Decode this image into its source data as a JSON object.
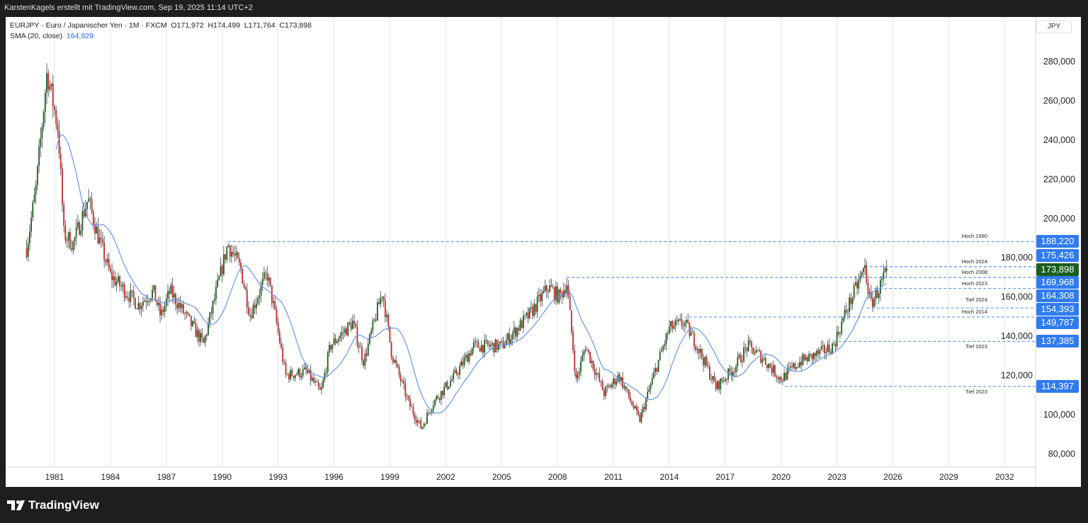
{
  "header": {
    "credit": "KarstenKagels erstellt mit TradingView.com, Sep 19, 2025 11:14 UTC+2"
  },
  "legend": {
    "symbol": "EURJPY · Euro / Japanischer Yen · 1M · FXCM",
    "open": "O171,972",
    "high": "H174,499",
    "low": "L171,764",
    "close": "C173,898",
    "sma_label": "SMA (20, close)",
    "sma_value": "164,929"
  },
  "currency": "JPY",
  "logo": "TradingView",
  "colors": {
    "up": "#1b5e20",
    "down": "#c62828",
    "sma": "#5b8def",
    "level": "#2f7bf0",
    "current": "#1b5e20"
  },
  "levels": [
    {
      "label": "Hoch 1990",
      "value": 188220,
      "text": "188,220",
      "from": 1990.3
    },
    {
      "label": "Hoch 2024",
      "value": 175426,
      "text": "175,426",
      "from": 2024.5
    },
    {
      "label": "Hoch 2008",
      "value": 169968,
      "text": "169,968",
      "from": 2008.5
    },
    {
      "label": "Hoch 2023",
      "value": 164308,
      "text": "164,308",
      "from": 2025.0
    },
    {
      "label": "Tief 2024",
      "value": 154393,
      "text": "154,393",
      "from": 2024.6
    },
    {
      "label": "Hoch 2014",
      "value": 149787,
      "text": "149,787",
      "from": 2014.8
    },
    {
      "label": "Tief 2023",
      "value": 137385,
      "text": "137,385",
      "from": 2023.1
    },
    {
      "label": "Tief 2023",
      "value": 114397,
      "text": "114,397",
      "from": 2020.2
    }
  ],
  "current_price": {
    "value": 173898,
    "text": "173,898"
  },
  "chart_data": {
    "type": "candlestick",
    "interval": "1M",
    "ylim": [
      72000,
      295000
    ],
    "xlim": [
      1979.4,
      2034.8
    ],
    "yticks": [
      80000,
      100000,
      120000,
      140000,
      160000,
      180000,
      200000,
      220000,
      240000,
      260000,
      280000
    ],
    "ytick_labels": [
      "80,000",
      "100,000",
      "120,000",
      "140,000",
      "160,000",
      "180,000",
      "200,000",
      "220,000",
      "240,000",
      "260,000",
      "280,000"
    ],
    "xticks": [
      1981,
      1984,
      1987,
      1990,
      1993,
      1996,
      1999,
      2002,
      2005,
      2008,
      2011,
      2014,
      2017,
      2020,
      2023,
      2026,
      2029,
      2032
    ],
    "xtick_labels": [
      "1981",
      "1984",
      "1987",
      "1990",
      "1993",
      "1996",
      "1999",
      "2002",
      "2005",
      "2008",
      "2011",
      "2014",
      "2017",
      "2020",
      "2023",
      "2026",
      "2029",
      "2032"
    ],
    "sma_period": 20,
    "close_waypoints": [
      [
        1979.5,
        185000
      ],
      [
        1980.0,
        215000
      ],
      [
        1980.6,
        275000
      ],
      [
        1981.2,
        245000
      ],
      [
        1981.5,
        192000
      ],
      [
        1982.0,
        187000
      ],
      [
        1982.8,
        210000
      ],
      [
        1983.3,
        192000
      ],
      [
        1984.0,
        171000
      ],
      [
        1985.5,
        156000
      ],
      [
        1986.3,
        163000
      ],
      [
        1986.7,
        150000
      ],
      [
        1987.2,
        163000
      ],
      [
        1988.6,
        142000
      ],
      [
        1989.0,
        136000
      ],
      [
        1990.3,
        187000
      ],
      [
        1991.0,
        174000
      ],
      [
        1991.5,
        151000
      ],
      [
        1992.4,
        172000
      ],
      [
        1992.8,
        153000
      ],
      [
        1993.4,
        120000
      ],
      [
        1994.5,
        122000
      ],
      [
        1995.3,
        111000
      ],
      [
        1995.8,
        135000
      ],
      [
        1997.0,
        147000
      ],
      [
        1997.6,
        127000
      ],
      [
        1998.6,
        163000
      ],
      [
        1999.1,
        131000
      ],
      [
        2000.0,
        106000
      ],
      [
        2000.7,
        93000
      ],
      [
        2001.3,
        106000
      ],
      [
        2002.5,
        120000
      ],
      [
        2003.5,
        135000
      ],
      [
        2005.0,
        135000
      ],
      [
        2006.5,
        151000
      ],
      [
        2007.5,
        165000
      ],
      [
        2008.1,
        160000
      ],
      [
        2008.5,
        167000
      ],
      [
        2009.0,
        117000
      ],
      [
        2009.5,
        135000
      ],
      [
        2010.5,
        111000
      ],
      [
        2011.3,
        120000
      ],
      [
        2012.4,
        97000
      ],
      [
        2013.3,
        124000
      ],
      [
        2014.0,
        144000
      ],
      [
        2014.8,
        147000
      ],
      [
        2015.5,
        135000
      ],
      [
        2016.5,
        114000
      ],
      [
        2017.5,
        124000
      ],
      [
        2018.2,
        135000
      ],
      [
        2019.0,
        129000
      ],
      [
        2020.0,
        118000
      ],
      [
        2021.0,
        127000
      ],
      [
        2022.0,
        131000
      ],
      [
        2022.8,
        135000
      ],
      [
        2023.5,
        153000
      ],
      [
        2024.5,
        175000
      ],
      [
        2024.8,
        156000
      ],
      [
        2025.2,
        163000
      ],
      [
        2025.7,
        173898
      ]
    ]
  }
}
